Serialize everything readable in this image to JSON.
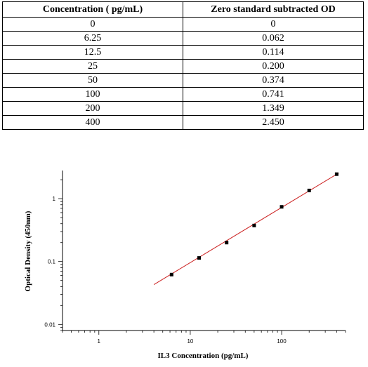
{
  "table": {
    "headers": [
      "Concentration ( pg/mL)",
      "Zero standard subtracted OD"
    ],
    "rows": [
      [
        "0",
        "0"
      ],
      [
        "6.25",
        "0.062"
      ],
      [
        "12.5",
        "0.114"
      ],
      [
        "25",
        "0.200"
      ],
      [
        "50",
        "0.374"
      ],
      [
        "100",
        "0.741"
      ],
      [
        "200",
        "1.349"
      ],
      [
        "400",
        "2.450"
      ]
    ]
  },
  "chart_data": {
    "type": "scatter",
    "xlabel": "IL3 Concentration (pg/mL)",
    "ylabel": "Optical Density (450nm)",
    "x_scale": "log",
    "y_scale": "log",
    "xlim": [
      0.4,
      500
    ],
    "ylim": [
      0.008,
      2.8
    ],
    "x_ticks": [
      {
        "value": 1,
        "label": "1"
      },
      {
        "value": 10,
        "label": "10"
      },
      {
        "value": 100,
        "label": "100"
      }
    ],
    "y_ticks": [
      {
        "value": 0.01,
        "label": "0.01"
      },
      {
        "value": 0.1,
        "label": "0.1"
      },
      {
        "value": 1,
        "label": "1"
      }
    ],
    "grid": false,
    "points": [
      {
        "x": 6.25,
        "y": 0.062
      },
      {
        "x": 12.5,
        "y": 0.114
      },
      {
        "x": 25,
        "y": 0.2
      },
      {
        "x": 50,
        "y": 0.374
      },
      {
        "x": 100,
        "y": 0.741
      },
      {
        "x": 200,
        "y": 1.349
      },
      {
        "x": 400,
        "y": 2.45
      }
    ],
    "fit_line": {
      "x_start": 4,
      "y_start": 0.043,
      "x_end": 420,
      "y_end": 2.55
    },
    "point_color": "#000000",
    "fit_color": "#cc2222"
  }
}
